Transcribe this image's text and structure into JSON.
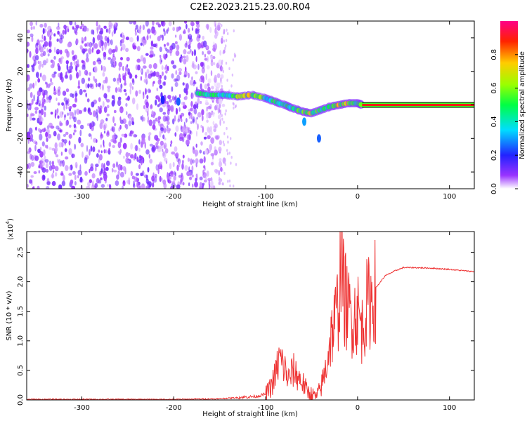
{
  "title": "C2E2.2023.215.23.00.R04",
  "chart_data": [
    {
      "type": "heatmap",
      "xlabel": "Height of straight line (km)",
      "ylabel": "Frequency (Hz)",
      "xlim": [
        -360,
        127
      ],
      "ylim": [
        -50,
        50
      ],
      "xticks": [
        -300,
        -200,
        -100,
        0,
        100
      ],
      "yticks": [
        -40,
        -20,
        0,
        20,
        40
      ],
      "colorbar": {
        "label": "Normalized spectral amplitude",
        "range": [
          0,
          1
        ],
        "ticks": [
          0.0,
          0.2,
          0.4,
          0.6,
          0.8
        ]
      },
      "signal_trace": {
        "x": [
          -175,
          -160,
          -145,
          -130,
          -115,
          -100,
          -90,
          -80,
          -70,
          -60,
          -50,
          -40,
          -30,
          -20,
          -10,
          0,
          5
        ],
        "frequency": [
          7,
          6,
          6,
          5,
          6,
          4,
          2,
          0,
          -2,
          -4,
          -5,
          -3,
          -1,
          0,
          1,
          1,
          0
        ],
        "amplitude": [
          0.45,
          0.55,
          0.5,
          0.6,
          0.75,
          0.5,
          0.55,
          0.45,
          0.55,
          0.6,
          0.7,
          0.5,
          0.6,
          0.8,
          0.75,
          0.65,
          0.6
        ]
      },
      "noise_region_x": [
        -360,
        -155
      ],
      "steady_tone": {
        "x_start": 5,
        "x_end": 127,
        "frequency": 0,
        "amplitude": 1.0
      }
    },
    {
      "type": "line",
      "xlabel": "Height of straight line (km)",
      "ylabel": "SNR (10 * v/v)",
      "yscale_label": "(x10",
      "yscale_exponent": "4",
      "xlim": [
        -360,
        127
      ],
      "ylim": [
        0,
        2.85
      ],
      "xticks": [
        -300,
        -200,
        -100,
        0,
        100
      ],
      "yticks": [
        0.0,
        0.5,
        1.0,
        1.5,
        2.0,
        2.5
      ],
      "series": [
        {
          "color": "#ee3333",
          "x": [
            -360,
            -300,
            -250,
            -200,
            -150,
            -130,
            -110,
            -100,
            -95,
            -90,
            -85,
            -80,
            -75,
            -70,
            -65,
            -60,
            -55,
            -50,
            -45,
            -40,
            -35,
            -30,
            -25,
            -20,
            -18,
            -15,
            -10,
            -5,
            0,
            5,
            10,
            15,
            20,
            25,
            30,
            40,
            50,
            60,
            80,
            100,
            127
          ],
          "y": [
            0.01,
            0.01,
            0.01,
            0.01,
            0.02,
            0.04,
            0.06,
            0.1,
            0.2,
            0.4,
            0.7,
            0.55,
            0.35,
            0.5,
            0.4,
            0.3,
            0.15,
            0.1,
            0.05,
            0.2,
            0.5,
            1.0,
            1.3,
            1.7,
            2.6,
            1.8,
            1.5,
            1.4,
            1.5,
            1.2,
            1.6,
            1.7,
            1.9,
            2.0,
            2.1,
            2.18,
            2.24,
            2.24,
            2.23,
            2.21,
            2.17
          ]
        }
      ]
    }
  ]
}
